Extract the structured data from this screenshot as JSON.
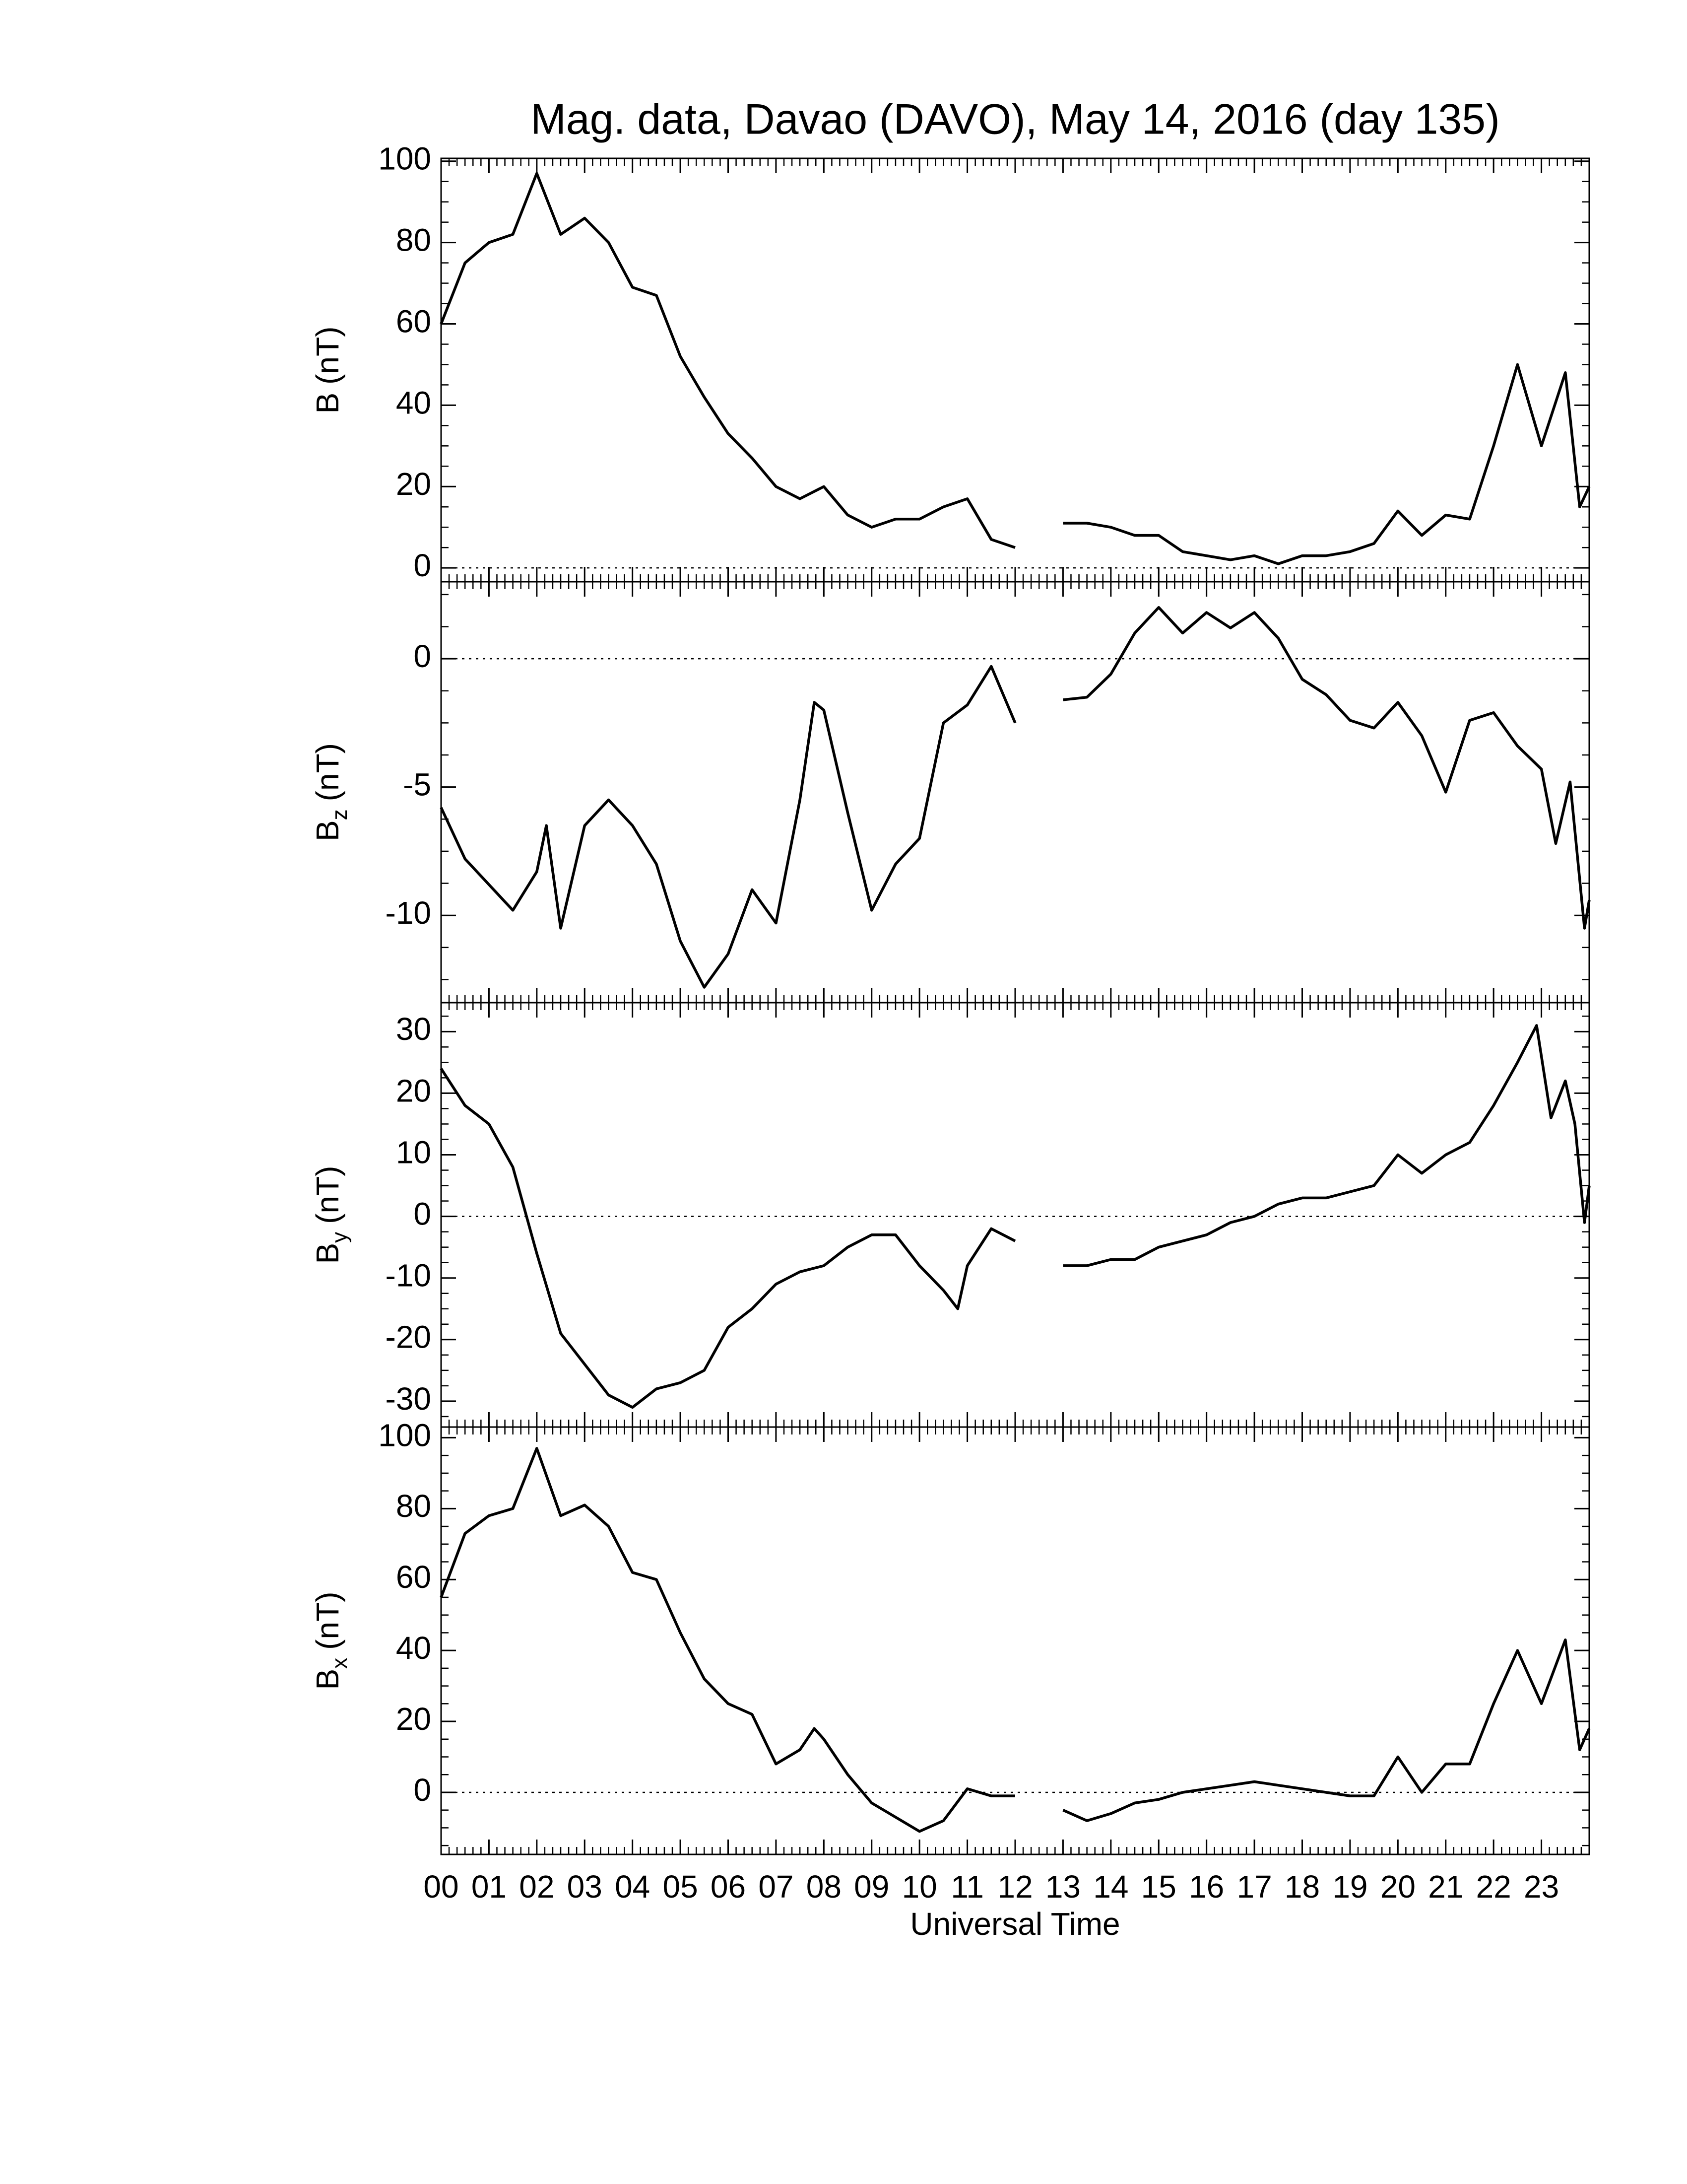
{
  "chart_data": [
    {
      "type": "line",
      "title": "Mag. data, Davao (DAVO), May 14, 2016 (day 135)",
      "ylabel": "B",
      "ylabel_unit": "(nT)",
      "color": "#000000",
      "zero_line": true,
      "ylim": [
        -3.4,
        100.7
      ],
      "yticks": [
        0,
        20,
        40,
        60,
        80,
        100
      ],
      "xlim": [
        0,
        24
      ],
      "x": [
        0,
        0.5,
        1,
        1.5,
        2,
        2.5,
        3,
        3.5,
        4,
        4.5,
        5,
        5.5,
        6,
        6.5,
        7,
        7.5,
        8,
        8.5,
        9,
        9.5,
        10,
        10.5,
        11,
        11.5,
        12,
        12.5,
        13,
        13.5,
        14,
        14.5,
        15,
        15.5,
        16,
        16.5,
        17,
        17.5,
        18,
        18.5,
        19,
        19.5,
        20,
        20.5,
        21,
        21.5,
        22,
        22.5,
        23,
        23.5,
        23.8,
        24
      ],
      "values": [
        60,
        75,
        80,
        82,
        97,
        82,
        86,
        80,
        69,
        67,
        52,
        42,
        33,
        27,
        20,
        17,
        20,
        13,
        10,
        12,
        12,
        15,
        17,
        7,
        5,
        null,
        11,
        11,
        10,
        8,
        8,
        4,
        3,
        2,
        3,
        1,
        3,
        3,
        4,
        6,
        14,
        8,
        13,
        12,
        30,
        50,
        30,
        48,
        15,
        20
      ]
    },
    {
      "type": "line",
      "ylabel": "B",
      "ylabel_sub": "z",
      "ylabel_unit": "(nT)",
      "color": "#000000",
      "zero_line": true,
      "ylim": [
        -13.4,
        3
      ],
      "yticks": [
        -10,
        -5,
        0
      ],
      "xlim": [
        0,
        24
      ],
      "x": [
        0,
        0.5,
        1,
        1.5,
        2,
        2.2,
        2.5,
        3,
        3.5,
        4,
        4.5,
        5,
        5.5,
        6,
        6.5,
        7,
        7.5,
        7.8,
        8,
        8.5,
        9,
        9.5,
        10,
        10.5,
        11,
        11.5,
        12,
        12.5,
        13,
        13.5,
        14,
        14.5,
        15,
        15.5,
        16,
        16.5,
        17,
        17.5,
        18,
        18.5,
        19,
        19.5,
        20,
        20.5,
        21,
        21.5,
        22,
        22.5,
        23,
        23.3,
        23.6,
        23.9,
        24
      ],
      "values": [
        -5.8,
        -7.8,
        -8.8,
        -9.8,
        -8.3,
        -6.5,
        -10.5,
        -6.5,
        -5.5,
        -6.5,
        -8,
        -11,
        -12.8,
        -11.5,
        -9,
        -10.3,
        -5.5,
        -1.7,
        -2,
        -6,
        -9.8,
        -8,
        -7,
        -2.5,
        -1.8,
        -0.3,
        -2.5,
        null,
        -1.6,
        -1.5,
        -0.6,
        1,
        2,
        1,
        1.8,
        1.2,
        1.8,
        0.8,
        -0.8,
        -1.4,
        -2.4,
        -2.7,
        -1.7,
        -3,
        -5.2,
        -2.4,
        -2.1,
        -3.4,
        -4.3,
        -7.2,
        -4.8,
        -10.5,
        -9.4
      ]
    },
    {
      "type": "line",
      "ylabel": "B",
      "ylabel_sub": "y",
      "ylabel_unit": "(nT)",
      "color": "#000000",
      "zero_line": true,
      "ylim": [
        -34.2,
        34.7
      ],
      "yticks": [
        -30,
        -20,
        -10,
        0,
        10,
        20,
        30
      ],
      "xlim": [
        0,
        24
      ],
      "x": [
        0,
        0.5,
        1,
        1.5,
        2,
        2.5,
        3,
        3.5,
        4,
        4.5,
        5,
        5.5,
        6,
        6.5,
        7,
        7.5,
        8,
        8.5,
        9,
        9.5,
        10,
        10.5,
        10.8,
        11,
        11.5,
        12,
        12.5,
        13,
        13.5,
        14,
        14.5,
        15,
        15.5,
        16,
        16.5,
        17,
        17.5,
        18,
        18.5,
        19,
        19.5,
        20,
        20.5,
        21,
        21.5,
        22,
        22.5,
        22.9,
        23.2,
        23.5,
        23.7,
        23.9,
        24
      ],
      "values": [
        24,
        18,
        15,
        8,
        -6,
        -19,
        -24,
        -29,
        -31,
        -28,
        -27,
        -25,
        -18,
        -15,
        -11,
        -9,
        -8,
        -5,
        -3,
        -3,
        -8,
        -12,
        -15,
        -8,
        -2,
        -4,
        null,
        -8,
        -8,
        -7,
        -7,
        -5,
        -4,
        -3,
        -1,
        0,
        2,
        3,
        3,
        4,
        5,
        10,
        7,
        10,
        12,
        18,
        25,
        31,
        16,
        22,
        15,
        -1,
        5
      ]
    },
    {
      "type": "line",
      "ylabel": "B",
      "ylabel_sub": "x",
      "ylabel_unit": "(nT)",
      "color": "#000000",
      "zero_line": true,
      "ylim": [
        -17.5,
        103
      ],
      "yticks": [
        0,
        20,
        40,
        60,
        80,
        100
      ],
      "xlim": [
        0,
        24
      ],
      "xlabel": "Universal Time",
      "xticks": [
        {
          "value": 0,
          "label": "00"
        },
        {
          "value": 1,
          "label": "01"
        },
        {
          "value": 2,
          "label": "02"
        },
        {
          "value": 3,
          "label": "03"
        },
        {
          "value": 4,
          "label": "04"
        },
        {
          "value": 5,
          "label": "05"
        },
        {
          "value": 6,
          "label": "06"
        },
        {
          "value": 7,
          "label": "07"
        },
        {
          "value": 8,
          "label": "08"
        },
        {
          "value": 9,
          "label": "09"
        },
        10,
        11,
        12,
        13,
        14,
        15,
        16,
        17,
        18,
        19,
        20,
        21,
        22,
        23
      ],
      "x": [
        0,
        0.5,
        1,
        1.5,
        2,
        2.5,
        3,
        3.5,
        4,
        4.5,
        5,
        5.5,
        6,
        6.5,
        7,
        7.5,
        7.8,
        8,
        8.5,
        9,
        9.5,
        10,
        10.5,
        11,
        11.5,
        12,
        12.5,
        13,
        13.5,
        14,
        14.5,
        15,
        15.5,
        16,
        16.5,
        17,
        17.5,
        18,
        18.5,
        19,
        19.5,
        20,
        20.5,
        21,
        21.5,
        22,
        22.5,
        23,
        23.5,
        23.8,
        24
      ],
      "values": [
        55,
        73,
        78,
        80,
        97,
        78,
        81,
        75,
        62,
        60,
        45,
        32,
        25,
        22,
        8,
        12,
        18,
        15,
        5,
        -3,
        -7,
        -11,
        -8,
        1,
        -1,
        -1,
        null,
        -5,
        -8,
        -6,
        -3,
        -2,
        0,
        1,
        2,
        3,
        2,
        1,
        0,
        -1,
        -1,
        10,
        0,
        8,
        8,
        25,
        40,
        25,
        43,
        12,
        18
      ]
    }
  ]
}
